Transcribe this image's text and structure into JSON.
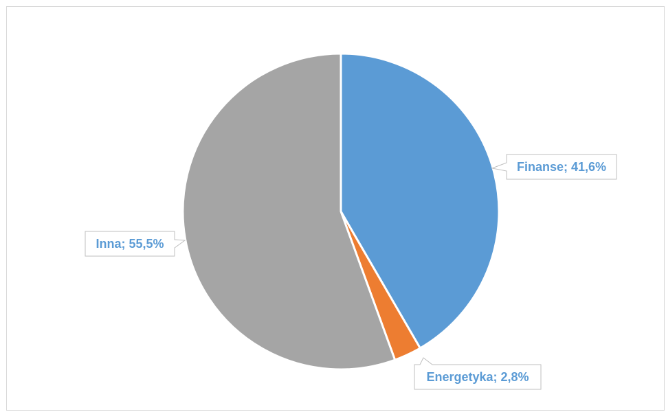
{
  "chart_data": {
    "type": "pie",
    "title": "",
    "slices": [
      {
        "name": "Finanse",
        "value": 41.6,
        "label": "Finanse; 41,6%",
        "color": "#5b9bd5"
      },
      {
        "name": "Energetyka",
        "value": 2.8,
        "label": "Energetyka; 2,8%",
        "color": "#ed7d31"
      },
      {
        "name": "Inna",
        "value": 55.5,
        "label": "Inna; 55,5%",
        "color": "#a5a5a5"
      }
    ],
    "label_color": "#5b9bd5",
    "legend": "none",
    "start_angle_deg": 0,
    "direction": "clockwise"
  }
}
